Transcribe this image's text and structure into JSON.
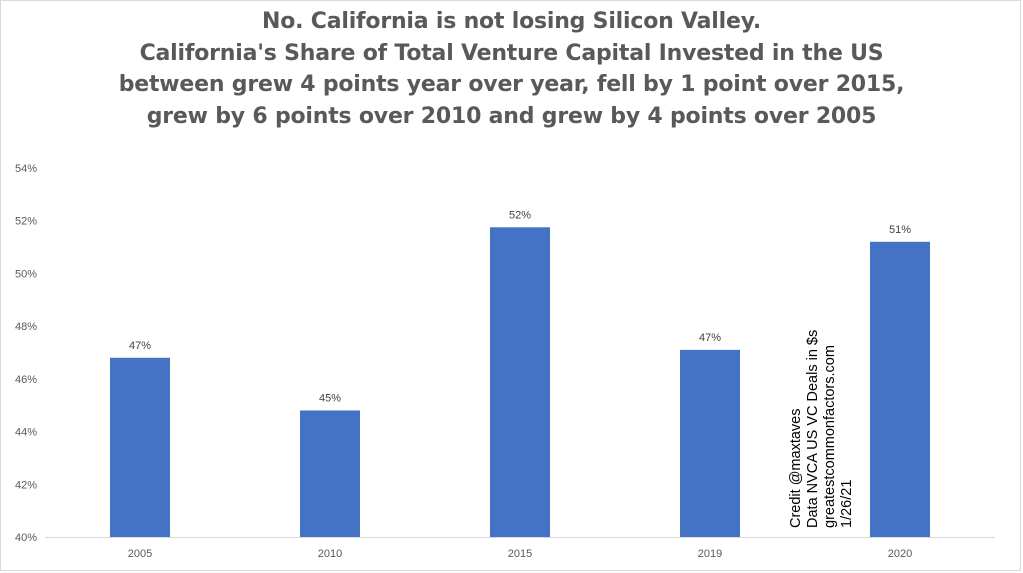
{
  "chart_data": {
    "type": "bar",
    "title": [
      "No. California is not losing Silicon Valley.",
      "California's Share of Total Venture Capital Invested in the US",
      "between grew 4 points year over year, fell by 1 point over 2015,",
      "grew by 6 points over 2010 and grew by 4 points over 2005"
    ],
    "categories": [
      "2005",
      "2010",
      "2015",
      "2019",
      "2020"
    ],
    "values": [
      46.8,
      44.8,
      51.75,
      47.1,
      51.2
    ],
    "data_labels": [
      "47%",
      "45%",
      "52%",
      "47%",
      "51%"
    ],
    "ylim": [
      40,
      54
    ],
    "yticks": [
      40,
      42,
      44,
      46,
      48,
      50,
      52,
      54
    ],
    "ytick_labels": [
      "40%",
      "42%",
      "44%",
      "46%",
      "48%",
      "50%",
      "52%",
      "54%"
    ],
    "xlabel": "",
    "ylabel": "",
    "grid": false,
    "bar_color": "#4472c4",
    "annotation": [
      "Credit @maxtaves",
      "Data NVCA US VC Deals in $s",
      "greatestcommonfactors.com",
      "1/26/21"
    ]
  }
}
